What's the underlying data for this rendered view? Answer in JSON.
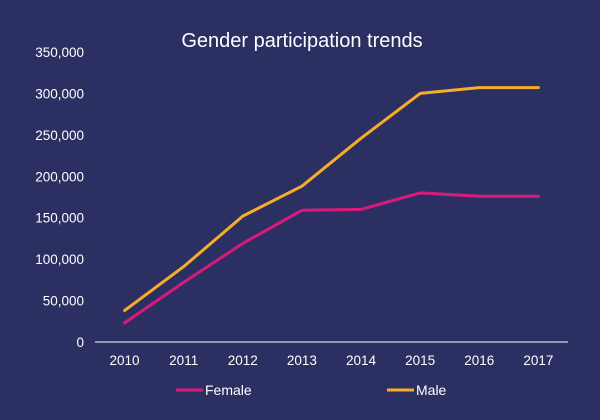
{
  "chart_data": {
    "type": "line",
    "title": "Gender participation trends",
    "xlabel": "",
    "ylabel": "",
    "categories": [
      "2010",
      "2011",
      "2012",
      "2013",
      "2014",
      "2015",
      "2016",
      "2017"
    ],
    "ylim": [
      0,
      350000
    ],
    "yticks": [
      0,
      50000,
      100000,
      150000,
      200000,
      250000,
      300000,
      350000
    ],
    "ytick_labels": [
      "0",
      "50,000",
      "100,000",
      "150,000",
      "200,000",
      "250,000",
      "300,000",
      "350,000"
    ],
    "grid": false,
    "legend_position": "bottom",
    "series": [
      {
        "name": "Female",
        "color": "#d81b79",
        "values": [
          23000,
          72000,
          119000,
          159000,
          160000,
          180000,
          176000,
          176000
        ]
      },
      {
        "name": "Male",
        "color": "#f5ad2a",
        "values": [
          38000,
          91000,
          152000,
          188000,
          246000,
          300000,
          307000,
          307000
        ]
      }
    ]
  }
}
